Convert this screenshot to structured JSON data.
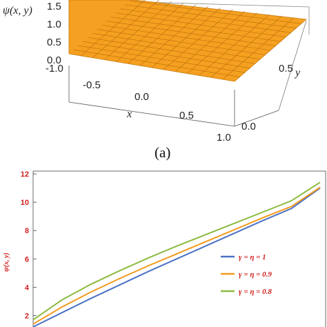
{
  "caption_a": "(a)",
  "chart_data": [
    {
      "type": "surface",
      "zlabel": "ψ(x, y)",
      "xlabel": "x",
      "ylabel": "y",
      "x_ticks": [
        "-1.0",
        "-0.5",
        "0.0",
        "0.5",
        "1.0"
      ],
      "y_ticks": [
        "0.0",
        "0.5"
      ],
      "z_ticks": [
        "0.0",
        "0.5",
        "1.0",
        "1.5"
      ],
      "surface_color": "#f5a020",
      "grid": true
    },
    {
      "type": "line",
      "ylabel": "ψ(x, y)",
      "ylim": [
        1,
        12
      ],
      "y_ticks": [
        "2",
        "4",
        "6",
        "8",
        "10",
        "12"
      ],
      "legend_position": "right",
      "series": [
        {
          "name": "γ = η = 1",
          "color": "#4a72c4",
          "points": [
            [
              0.0,
              1.2
            ],
            [
              0.1,
              2.2
            ],
            [
              0.2,
              3.2
            ],
            [
              0.3,
              4.15
            ],
            [
              0.4,
              5.1
            ],
            [
              0.5,
              6.0
            ],
            [
              0.6,
              6.9
            ],
            [
              0.7,
              7.8
            ],
            [
              0.8,
              8.7
            ],
            [
              0.9,
              9.55
            ],
            [
              1.0,
              11.0
            ]
          ]
        },
        {
          "name": "γ = η = 0.9",
          "color": "#f39a1e",
          "points": [
            [
              0.0,
              1.4
            ],
            [
              0.1,
              2.6
            ],
            [
              0.2,
              3.65
            ],
            [
              0.3,
              4.6
            ],
            [
              0.4,
              5.5
            ],
            [
              0.5,
              6.35
            ],
            [
              0.6,
              7.2
            ],
            [
              0.7,
              8.05
            ],
            [
              0.8,
              8.9
            ],
            [
              0.9,
              9.7
            ],
            [
              1.0,
              11.05
            ]
          ]
        },
        {
          "name": "γ = η = 0.8",
          "color": "#8cba3e",
          "points": [
            [
              0.0,
              1.7
            ],
            [
              0.1,
              3.1
            ],
            [
              0.2,
              4.2
            ],
            [
              0.3,
              5.15
            ],
            [
              0.4,
              6.05
            ],
            [
              0.5,
              6.9
            ],
            [
              0.6,
              7.7
            ],
            [
              0.7,
              8.5
            ],
            [
              0.8,
              9.3
            ],
            [
              0.9,
              10.1
            ],
            [
              1.0,
              11.4
            ]
          ]
        }
      ]
    }
  ]
}
